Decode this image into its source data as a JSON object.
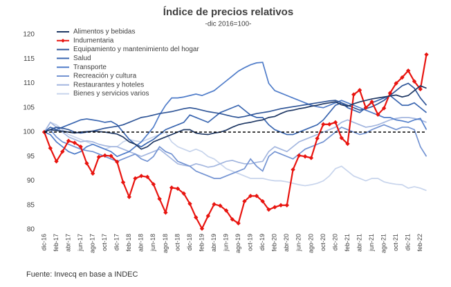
{
  "chart_data": {
    "type": "line",
    "title": "Índice de precios relativos",
    "subtitle": "-dic 2016=100-",
    "source": "Fuente: Invecq en base a INDEC",
    "categories": [
      "dic-16",
      null,
      "feb-17",
      null,
      "abr-17",
      null,
      "jun-17",
      null,
      "ago-17",
      null,
      "oct-17",
      null,
      "dic-17",
      null,
      "feb-18",
      null,
      "abr-18",
      null,
      "jun-18",
      null,
      "ago-18",
      null,
      "oct-18",
      null,
      "dic-18",
      null,
      "feb-19",
      null,
      "abr-19",
      null,
      "jun-19",
      null,
      "ago-19",
      null,
      "oct-19",
      null,
      "dic-19",
      null,
      "feb-20",
      null,
      "abr-20",
      null,
      "jun-20",
      null,
      "ago-20",
      null,
      "oct-20",
      null,
      "dic-20",
      null,
      "feb-21",
      null,
      "abr-21",
      null,
      "jun-21",
      null,
      "ago-21",
      null,
      "oct-21",
      null,
      "dic-21",
      null,
      "feb-22",
      null
    ],
    "ylim": [
      80,
      120
    ],
    "yticks": [
      80,
      85,
      90,
      95,
      100,
      105,
      110,
      115,
      120
    ],
    "reference_line": 100,
    "legend": "top-left",
    "series": [
      {
        "name": "Alimentos y bebidas",
        "color": "#1f3864",
        "values": [
          100,
          100.5,
          100.3,
          100.2,
          100,
          99.8,
          100,
          100.1,
          100.2,
          100.1,
          100,
          99.8,
          99.6,
          99,
          98,
          97.5,
          96.5,
          97,
          98,
          98.5,
          99,
          99.5,
          100,
          100.5,
          100.5,
          99.8,
          99.6,
          99.5,
          99.8,
          100,
          100.4,
          101,
          101.5,
          101.8,
          102,
          102.3,
          102.5,
          103,
          103.2,
          103.8,
          104.3,
          104.5,
          104.8,
          105,
          105.3,
          105.5,
          105.8,
          106,
          106.2,
          105.6,
          105.3,
          105.8,
          106.2,
          106.5,
          106.8,
          107,
          107.2,
          107.4,
          107.6,
          107.2,
          107.5,
          108.5,
          109.5,
          109
        ]
      },
      {
        "name": "Indumentaria",
        "color": "#e8140f",
        "marker": "diamond",
        "values": [
          100,
          96.7,
          94,
          96,
          98.2,
          97.8,
          97,
          93.6,
          91.5,
          94.9,
          95.2,
          95.1,
          93.9,
          89.7,
          86.7,
          90.5,
          91,
          90.8,
          89.3,
          86.3,
          83.5,
          88.6,
          88.4,
          87.4,
          85.3,
          82.5,
          80.2,
          82.8,
          85.2,
          84.9,
          83.9,
          82.1,
          81.3,
          85.8,
          86.9,
          86.9,
          85.8,
          84.1,
          84.6,
          85,
          85,
          92.3,
          95.2,
          95,
          94.7,
          98.7,
          101.6,
          101.6,
          102,
          98.8,
          97.6,
          107.7,
          108.6,
          105,
          106.2,
          103.6,
          104.9,
          108,
          110,
          111.2,
          112.6,
          110.4,
          108.8,
          115.9
        ]
      },
      {
        "name": "Equipamiento y mantenimiento del hogar",
        "color": "#2f5597",
        "values": [
          100,
          100.5,
          101,
          100.8,
          100.5,
          100,
          99.8,
          100,
          100.2,
          100.5,
          100.8,
          101,
          101.2,
          101.5,
          102,
          102.5,
          103,
          103.2,
          103.5,
          103.8,
          104,
          104.2,
          104.5,
          104.8,
          105,
          104.8,
          104.5,
          104.2,
          104,
          103.8,
          103.5,
          103.2,
          103,
          103.2,
          103.5,
          103.8,
          104,
          104.2,
          104.5,
          104.8,
          105,
          105.2,
          105.4,
          105.6,
          105.8,
          106,
          106.2,
          106.4,
          106.5,
          106,
          105.5,
          105,
          104.5,
          104.8,
          105.2,
          105.8,
          106.5,
          107.5,
          108.5,
          109.5,
          110,
          109,
          107,
          105.5
        ]
      },
      {
        "name": "Salud",
        "color": "#3a66b0",
        "values": [
          100,
          101,
          100.5,
          101,
          101.5,
          102,
          102.5,
          102.7,
          102.5,
          102.3,
          102,
          102.2,
          101.5,
          100,
          98.5,
          97.5,
          97,
          97.8,
          98.5,
          99.5,
          100.5,
          101,
          101.5,
          102,
          103.5,
          103,
          102.5,
          102,
          103,
          104,
          104.5,
          105,
          105.5,
          104.5,
          103.5,
          103,
          103,
          101.5,
          100.5,
          100,
          99.5,
          99.5,
          100,
          100.5,
          101,
          101.5,
          102.5,
          104,
          105.5,
          106,
          105,
          104.5,
          104,
          105,
          106,
          106.5,
          107,
          107.5,
          106.5,
          105.5,
          105.5,
          106,
          105,
          104
        ]
      },
      {
        "name": "Transporte",
        "color": "#4f7cc9",
        "values": [
          100,
          99.5,
          98,
          97,
          96,
          95.5,
          96,
          97,
          97.5,
          97,
          96.5,
          96,
          95,
          95.5,
          96,
          97,
          98,
          99.5,
          101,
          103.5,
          105.5,
          107,
          107,
          107.2,
          107.5,
          107.8,
          107.5,
          108,
          108.5,
          109.5,
          110.5,
          111.5,
          112.5,
          113.2,
          113.8,
          114.2,
          114.3,
          110,
          108.5,
          108,
          107.5,
          107,
          106.5,
          106,
          105.5,
          105.2,
          105,
          105.5,
          106,
          106.5,
          106,
          105.5,
          105,
          104.5,
          104,
          103.5,
          103,
          103,
          102.5,
          102.3,
          102,
          102.5,
          102.8,
          100.5
        ]
      },
      {
        "name": "Recreación y cultura",
        "color": "#7393d2",
        "values": [
          100,
          100.5,
          99,
          98,
          97.5,
          97,
          96.5,
          96.2,
          96,
          95.5,
          95,
          94.5,
          94,
          94.5,
          95,
          95.5,
          94.5,
          94,
          95,
          97,
          96,
          95.5,
          94,
          93.5,
          93,
          92,
          91.5,
          91,
          90.5,
          90.5,
          91,
          91.5,
          92,
          92.5,
          94.5,
          93,
          92,
          95,
          96,
          95.5,
          95,
          94.5,
          95.5,
          96.5,
          97,
          97.5,
          98,
          99,
          100,
          101,
          100.5,
          100,
          99.5,
          99.8,
          100.5,
          101,
          101.5,
          101,
          100.5,
          101,
          101,
          100.5,
          97,
          95
        ]
      },
      {
        "name": "Restaurantes y hoteles",
        "color": "#a3b6df",
        "values": [
          100,
          102,
          101,
          100,
          99,
          98.5,
          98,
          98.2,
          98,
          97.5,
          97.2,
          97,
          97,
          96.5,
          96,
          95.5,
          95,
          95.5,
          96,
          96.5,
          95.5,
          94.5,
          93.5,
          93.2,
          93,
          93.5,
          93.2,
          92.8,
          93,
          93.5,
          94,
          94.2,
          93.8,
          93.5,
          93.5,
          93.8,
          94,
          96,
          97,
          96.5,
          96,
          97,
          98,
          98.5,
          99,
          99.5,
          100,
          100.5,
          101,
          102,
          102.5,
          102,
          101.5,
          101,
          101.2,
          101.5,
          102,
          102.5,
          102.8,
          103,
          103,
          102.8,
          102.5,
          102
        ]
      },
      {
        "name": "Bienes y servicios varios",
        "color": "#c7d4ec",
        "values": [
          100,
          102,
          101.5,
          100.5,
          99.5,
          99,
          98.5,
          98,
          97.5,
          97,
          96.5,
          97,
          97,
          98,
          98.5,
          98.2,
          98,
          98.5,
          99,
          99.5,
          100,
          98,
          97,
          96.5,
          96,
          96.5,
          96,
          95,
          94.5,
          93.5,
          92.5,
          92,
          91.5,
          91,
          90.5,
          90.5,
          90.5,
          90.2,
          90,
          90,
          89.8,
          89.5,
          89.2,
          89,
          89.2,
          89.5,
          90,
          91,
          92.5,
          93,
          92,
          91,
          90.5,
          90,
          90.5,
          90.5,
          89.8,
          89.5,
          89.3,
          89.2,
          88.5,
          88.8,
          88.5,
          88
        ]
      }
    ]
  }
}
